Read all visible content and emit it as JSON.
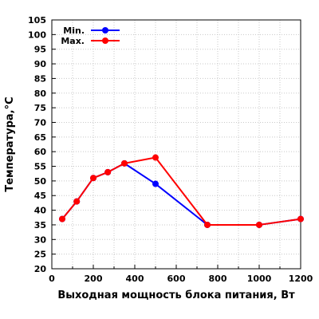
{
  "chart_data": {
    "type": "line",
    "title": "",
    "xlabel": "Выходная мощность блока питания, Вт",
    "ylabel": "Температура,°C",
    "xlim": [
      0,
      1200
    ],
    "ylim": [
      20,
      105
    ],
    "x_ticks": [
      0,
      200,
      400,
      600,
      800,
      1000,
      1200
    ],
    "y_ticks": [
      20,
      25,
      30,
      35,
      40,
      45,
      50,
      55,
      60,
      65,
      70,
      75,
      80,
      85,
      90,
      95,
      100,
      105
    ],
    "grid": true,
    "legend_position": "top-left",
    "series": [
      {
        "name": "Min.",
        "color": "#0000ff",
        "x": [
          50,
          120,
          200,
          270,
          350,
          500,
          750,
          1000,
          1200
        ],
        "y": [
          37,
          43,
          51,
          53,
          56,
          49,
          35,
          35,
          37
        ]
      },
      {
        "name": "Max.",
        "color": "#ff0000",
        "x": [
          50,
          120,
          200,
          270,
          350,
          500,
          750,
          1000,
          1200
        ],
        "y": [
          37,
          43,
          51,
          53,
          56,
          58,
          35,
          35,
          37
        ]
      }
    ]
  }
}
